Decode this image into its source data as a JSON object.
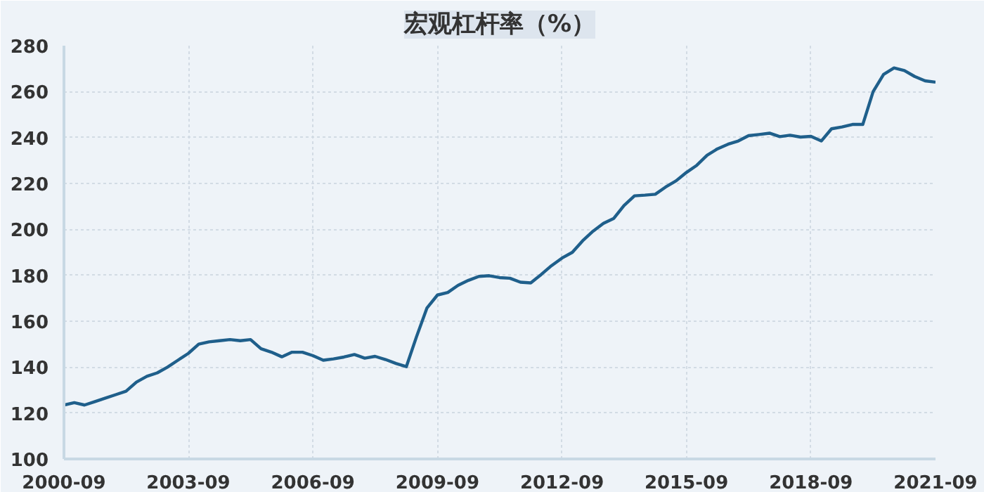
{
  "chart_data": {
    "type": "line",
    "title": "宏观杠杆率（%）",
    "x": [
      "2000-09",
      "2000-12",
      "2001-03",
      "2001-06",
      "2001-09",
      "2001-12",
      "2002-03",
      "2002-06",
      "2002-09",
      "2002-12",
      "2003-03",
      "2003-06",
      "2003-09",
      "2003-12",
      "2004-03",
      "2004-06",
      "2004-09",
      "2004-12",
      "2005-03",
      "2005-06",
      "2005-09",
      "2005-12",
      "2006-03",
      "2006-06",
      "2006-09",
      "2006-12",
      "2007-03",
      "2007-06",
      "2007-09",
      "2007-12",
      "2008-03",
      "2008-06",
      "2008-09",
      "2008-12",
      "2009-03",
      "2009-06",
      "2009-09",
      "2009-12",
      "2010-03",
      "2010-06",
      "2010-09",
      "2010-12",
      "2011-03",
      "2011-06",
      "2011-09",
      "2011-12",
      "2012-03",
      "2012-06",
      "2012-09",
      "2012-12",
      "2013-03",
      "2013-06",
      "2013-09",
      "2013-12",
      "2014-03",
      "2014-06",
      "2014-09",
      "2014-12",
      "2015-03",
      "2015-06",
      "2015-09",
      "2015-12",
      "2016-03",
      "2016-06",
      "2016-09",
      "2016-12",
      "2017-03",
      "2017-06",
      "2017-09",
      "2017-12",
      "2018-03",
      "2018-06",
      "2018-09",
      "2018-12",
      "2019-03",
      "2019-06",
      "2019-09",
      "2019-12",
      "2020-03",
      "2020-06",
      "2020-09",
      "2020-12",
      "2021-03",
      "2021-06",
      "2021-09"
    ],
    "series": [
      {
        "color": "#1f5f8b",
        "values": [
          123.5,
          124.5,
          123.5,
          125,
          126.5,
          128,
          129.5,
          133.5,
          136,
          137.5,
          140,
          143,
          146,
          150,
          151,
          151.5,
          152,
          151.5,
          152,
          148,
          146.5,
          144.5,
          146.5,
          146.5,
          145,
          143,
          143.6,
          144.4,
          145.5,
          143.9,
          144.7,
          143.3,
          141.6,
          140.2,
          153.3,
          165.8,
          171.4,
          172.5,
          175.6,
          177.8,
          179.5,
          179.8,
          179,
          178.7,
          177,
          176.7,
          180.3,
          184.2,
          187.5,
          190,
          195,
          199.2,
          202.6,
          204.8,
          210.4,
          214.6,
          214.9,
          215.3,
          218.4,
          221.1,
          224.8,
          227.9,
          232.3,
          235.1,
          237.1,
          238.5,
          240.8,
          241.3,
          241.9,
          240.4,
          241,
          240.2,
          240.5,
          238.5,
          243.8,
          244.6,
          245.7,
          245.7,
          260,
          267.5,
          270.3,
          269.2,
          266.6,
          264.7,
          264.1
        ]
      }
    ],
    "xlim": [
      "2000-09",
      "2021-09"
    ],
    "xticks": [
      "2000-09",
      "2003-09",
      "2006-09",
      "2009-09",
      "2012-09",
      "2015-09",
      "2018-09",
      "2021-09"
    ],
    "ylim": [
      100,
      280
    ],
    "yticks": [
      100,
      120,
      140,
      160,
      180,
      200,
      220,
      240,
      260,
      280
    ],
    "grid": true,
    "marker": "none",
    "line_style": "solid"
  }
}
